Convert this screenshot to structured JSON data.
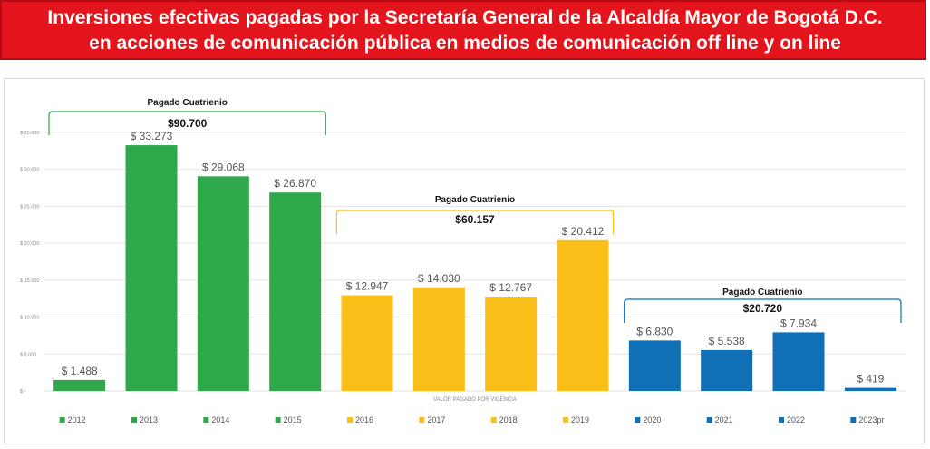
{
  "header": {
    "title_line1": "Inversiones efectivas pagadas por la Secretaría General de la Alcaldía Mayor de Bogotá D.C.",
    "title_line2": "en acciones de comunicación pública en medios de comunicación off line y on line"
  },
  "chart_data": {
    "type": "bar",
    "categories": [
      "2012",
      "2013",
      "2014",
      "2015",
      "2016",
      "2017",
      "2018",
      "2019",
      "2020",
      "2021",
      "2022",
      "2023pr"
    ],
    "values": [
      1488,
      33273,
      29068,
      26870,
      12947,
      14030,
      12767,
      20412,
      6830,
      5538,
      7934,
      419
    ],
    "data_labels": [
      "$ 1.488",
      "$ 33.273",
      "$ 29.068",
      "$ 26.870",
      "$ 12.947",
      "$ 14.030",
      "$ 12.767",
      "$ 20.412",
      "$ 6.830",
      "$ 5.538",
      "$ 7.934",
      "$ 419"
    ],
    "colors": [
      "#2ea84a",
      "#2ea84a",
      "#2ea84a",
      "#2ea84a",
      "#fbbf1a",
      "#fbbf1a",
      "#fbbf1a",
      "#fbbf1a",
      "#0f6fb7",
      "#0f6fb7",
      "#0f6fb7",
      "#0f6fb7"
    ],
    "ylim": [
      0,
      35000
    ],
    "yticks": [
      {
        "value": 0,
        "label": "$ -"
      },
      {
        "value": 5000,
        "label": "$ 5.000"
      },
      {
        "value": 10000,
        "label": "$ 10.000"
      },
      {
        "value": 15000,
        "label": "$ 15.000"
      },
      {
        "value": 20000,
        "label": "$ 20.000"
      },
      {
        "value": 25000,
        "label": "$ 25.000"
      },
      {
        "value": 30000,
        "label": "$ 30.000"
      },
      {
        "value": 35000,
        "label": "$ 35.000"
      }
    ],
    "xlabel": "VALOR PAGADO POR VIGENCIA",
    "grid": true,
    "legend_position": "bottom",
    "groups": [
      {
        "label": "Pagado Cuatrienio",
        "total": "$90.700",
        "from": 0,
        "to": 3,
        "color": "#2ea84a"
      },
      {
        "label": "Pagado Cuatrienio",
        "total": "$60.157",
        "from": 4,
        "to": 7,
        "color": "#fbbf1a"
      },
      {
        "label": "Pagado Cuatrienio",
        "total": "$20.720",
        "from": 8,
        "to": 11,
        "color": "#0f6fb7"
      }
    ]
  }
}
